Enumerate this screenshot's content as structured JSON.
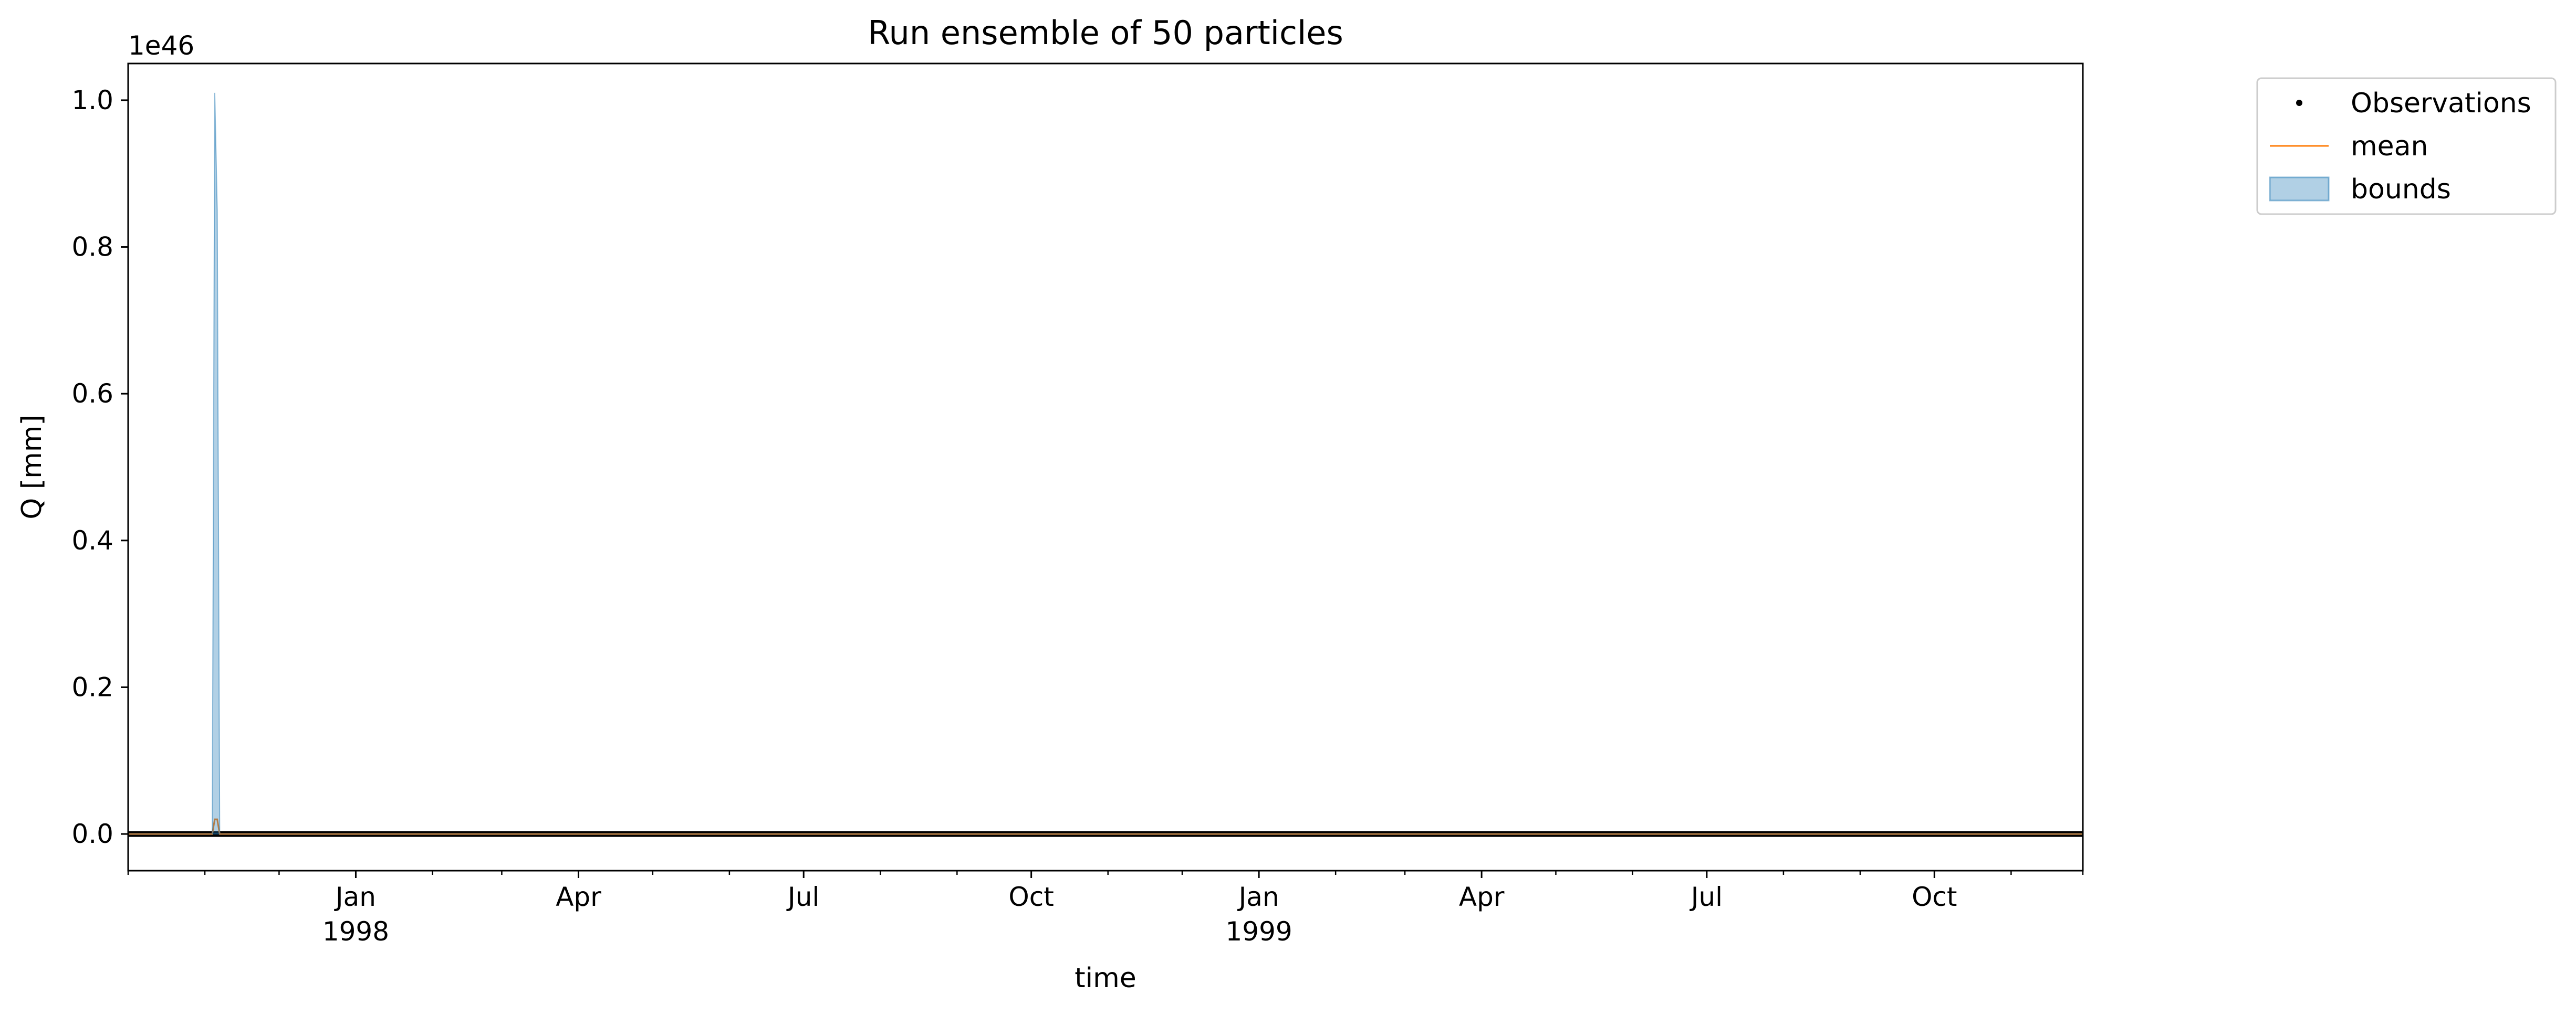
{
  "chart_data": {
    "type": "line",
    "title": "Run ensemble of 50 particles",
    "xlabel": "time",
    "ylabel": "Q [mm]",
    "y_offset_label": "1e46",
    "y_scale_exponent": 46,
    "xlim": [
      "1997-10-01",
      "1999-11-30"
    ],
    "ylim": [
      -0.05,
      1.05
    ],
    "y_ticks": [
      0.0,
      0.2,
      0.4,
      0.6,
      0.8,
      1.0
    ],
    "y_tick_labels": [
      "0.0",
      "0.2",
      "0.4",
      "0.6",
      "0.8",
      "1.0"
    ],
    "x_major_ticks": [
      {
        "date": "1998-01-01",
        "line1": "Jan",
        "line2": "1998"
      },
      {
        "date": "1998-04-01",
        "line1": "Apr",
        "line2": ""
      },
      {
        "date": "1998-07-01",
        "line1": "Jul",
        "line2": ""
      },
      {
        "date": "1998-10-01",
        "line1": "Oct",
        "line2": ""
      },
      {
        "date": "1999-01-01",
        "line1": "Jan",
        "line2": "1999"
      },
      {
        "date": "1999-04-01",
        "line1": "Apr",
        "line2": ""
      },
      {
        "date": "1999-07-01",
        "line1": "Jul",
        "line2": ""
      },
      {
        "date": "1999-10-01",
        "line1": "Oct",
        "line2": ""
      }
    ],
    "x_minor_ticks": [
      "1997-10-01",
      "1997-11-01",
      "1997-12-01",
      "1998-02-01",
      "1998-03-01",
      "1998-05-01",
      "1998-06-01",
      "1998-08-01",
      "1998-09-01",
      "1998-11-01",
      "1998-12-01",
      "1999-02-01",
      "1999-03-01",
      "1999-05-01",
      "1999-06-01",
      "1999-08-01",
      "1999-09-01",
      "1999-11-01",
      "1999-11-30"
    ],
    "grid": false,
    "legend_position": "outside top-right",
    "series": [
      {
        "name": "Observations",
        "kind": "points",
        "color": "#000000",
        "x": [
          "1997-10-01",
          "1999-11-30"
        ],
        "y": [
          0.0,
          0.0
        ]
      },
      {
        "name": "mean",
        "kind": "line",
        "color": "#ff7f0e",
        "x": [
          "1997-10-01",
          "1997-11-04",
          "1997-11-05",
          "1997-11-06",
          "1997-11-07",
          "1999-11-30"
        ],
        "y": [
          0.0,
          0.0,
          0.02,
          0.02,
          0.0,
          0.0
        ]
      },
      {
        "name": "bounds",
        "kind": "band",
        "color": "#1f77b4",
        "fill_opacity": 0.35,
        "x": [
          "1997-10-01",
          "1997-11-04",
          "1997-11-05",
          "1997-11-06",
          "1997-11-07",
          "1999-11-30"
        ],
        "lower": [
          0.0,
          0.0,
          0.0,
          0.0,
          0.0,
          0.0
        ],
        "upper": [
          0.0,
          0.0,
          1.01,
          0.85,
          0.0,
          0.0
        ]
      }
    ]
  }
}
